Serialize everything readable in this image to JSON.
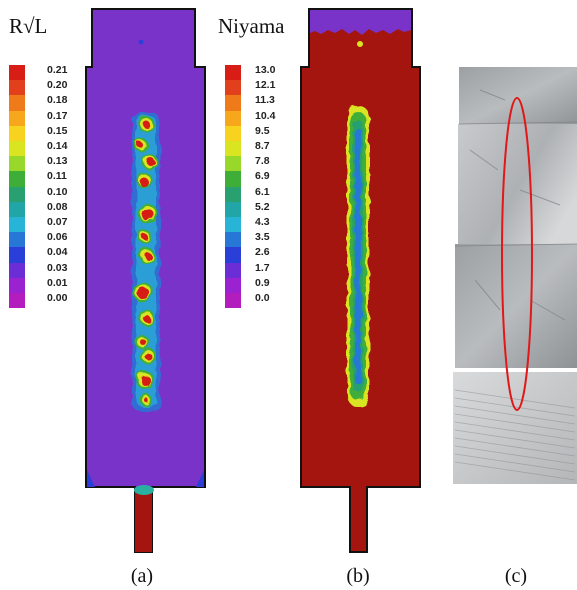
{
  "figure": {
    "panels": [
      {
        "caption": "(a)",
        "legend": {
          "title": "R√L",
          "ticks": [
            "0.21",
            "0.20",
            "0.18",
            "0.17",
            "0.15",
            "0.14",
            "0.13",
            "0.11",
            "0.10",
            "0.08",
            "0.07",
            "0.06",
            "0.04",
            "0.03",
            "0.01",
            "0.00"
          ]
        }
      },
      {
        "caption": "(b)",
        "legend": {
          "title": "Niyama",
          "ticks": [
            "13.0",
            "12.1",
            "11.3",
            "10.4",
            "9.5",
            "8.7",
            "7.8",
            "6.9",
            "6.1",
            "5.2",
            "4.3",
            "3.5",
            "2.6",
            "1.7",
            "0.9",
            "0.0"
          ]
        }
      },
      {
        "caption": "(c)"
      }
    ],
    "colors": {
      "scale_top_to_bottom": [
        "#d71d16",
        "#e2401c",
        "#ef7a1a",
        "#f6a71c",
        "#f7d21f",
        "#d9e521",
        "#97d82a",
        "#3fae38",
        "#28a070",
        "#22a5a6",
        "#28b4d6",
        "#2677d6",
        "#2a3fd8",
        "#6b2ed6",
        "#9a22d1",
        "#b31dbe"
      ],
      "panel_a_fill": "#7a33c9",
      "panel_b_fill": "#a3150e",
      "highlight_ellipse": "#e01818"
    }
  }
}
